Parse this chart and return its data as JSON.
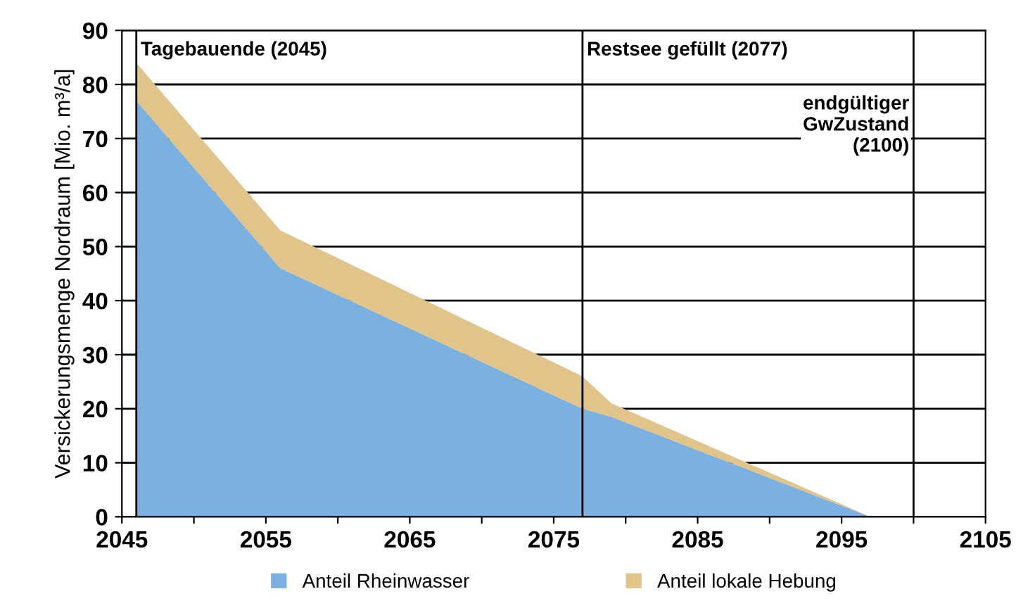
{
  "chart_data": {
    "type": "area",
    "stacked": true,
    "ylabel": "Versickerungsmenge Nordraum [Mio. m³/a]",
    "x": [
      2046,
      2056,
      2077,
      2079,
      2097
    ],
    "series": [
      {
        "name": "Anteil Rheinwasser",
        "color": "#7ab1e0",
        "values": [
          77,
          46,
          20,
          18.5,
          0
        ]
      },
      {
        "name": "Anteil lokale Hebung",
        "color": "#e0c48a",
        "values": [
          7,
          7,
          6,
          2.5,
          0
        ]
      }
    ],
    "xlim": [
      2045,
      2105
    ],
    "ylim": [
      0,
      90
    ],
    "xticks": [
      2045,
      {
        "value": 2050,
        "label": null
      },
      2055,
      {
        "value": 2060,
        "label": null
      },
      2065,
      {
        "value": 2070,
        "label": null
      },
      2075,
      {
        "value": 2080,
        "label": null
      },
      2085,
      {
        "value": 2090,
        "label": null
      },
      2095,
      {
        "value": 2100,
        "label": null
      },
      2105
    ],
    "yticks": [
      0,
      10,
      20,
      30,
      40,
      50,
      60,
      70,
      80,
      90
    ],
    "ref_lines": [
      {
        "axis": "x",
        "value": 2046,
        "label": "Tagebauende (2045)"
      },
      {
        "axis": "x",
        "value": 2077,
        "label": "Restsee gefüllt (2077)"
      },
      {
        "axis": "x",
        "value": 2100,
        "label": "endgültiger\nGwZustand\n(2100)"
      }
    ],
    "grid": "y",
    "legend": "bottom"
  }
}
